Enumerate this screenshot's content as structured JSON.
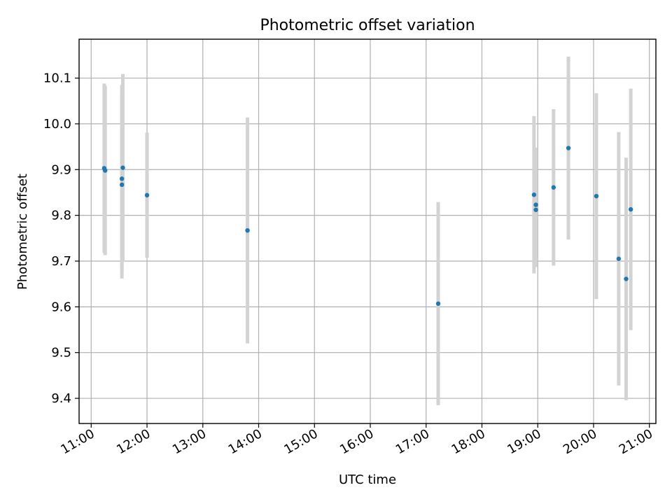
{
  "chart_data": {
    "type": "scatter",
    "title": "Photometric offset variation",
    "xlabel": "UTC time",
    "ylabel": "Photometric offset",
    "x_tick_labels": [
      "11:00",
      "12:00",
      "13:00",
      "14:00",
      "15:00",
      "16:00",
      "17:00",
      "18:00",
      "19:00",
      "20:00",
      "21:00"
    ],
    "y_ticks": [
      9.4,
      9.5,
      9.6,
      9.7,
      9.8,
      9.9,
      10.0,
      10.1
    ],
    "y_tick_labels": [
      "9.4",
      "9.5",
      "9.6",
      "9.7",
      "9.8",
      "9.9",
      "10.0",
      "10.1"
    ],
    "xlim": [
      "10:47",
      "21:07"
    ],
    "ylim": [
      9.345,
      10.185
    ],
    "grid": true,
    "errorbar_color": "#d3d3d3",
    "marker_color": "#1f77b4",
    "points": [
      {
        "x": "11:14",
        "y": 9.903,
        "err": 0.185
      },
      {
        "x": "11:15",
        "y": 9.898,
        "err": 0.185
      },
      {
        "x": "11:33",
        "y": 9.88,
        "err": 0.205
      },
      {
        "x": "11:33",
        "y": 9.867,
        "err": 0.205
      },
      {
        "x": "11:34",
        "y": 9.904,
        "err": 0.205
      },
      {
        "x": "12:00",
        "y": 9.844,
        "err": 0.137
      },
      {
        "x": "13:48",
        "y": 9.767,
        "err": 0.247
      },
      {
        "x": "17:13",
        "y": 9.607,
        "err": 0.222
      },
      {
        "x": "18:56",
        "y": 9.845,
        "err": 0.172
      },
      {
        "x": "18:58",
        "y": 9.823,
        "err": 0.125
      },
      {
        "x": "18:58",
        "y": 9.812,
        "err": 0.125
      },
      {
        "x": "19:17",
        "y": 9.861,
        "err": 0.171
      },
      {
        "x": "19:33",
        "y": 9.947,
        "err": 0.2
      },
      {
        "x": "20:03",
        "y": 9.842,
        "err": 0.225
      },
      {
        "x": "20:27",
        "y": 9.705,
        "err": 0.277
      },
      {
        "x": "20:35",
        "y": 9.661,
        "err": 0.265
      },
      {
        "x": "20:40",
        "y": 9.813,
        "err": 0.264
      }
    ]
  }
}
